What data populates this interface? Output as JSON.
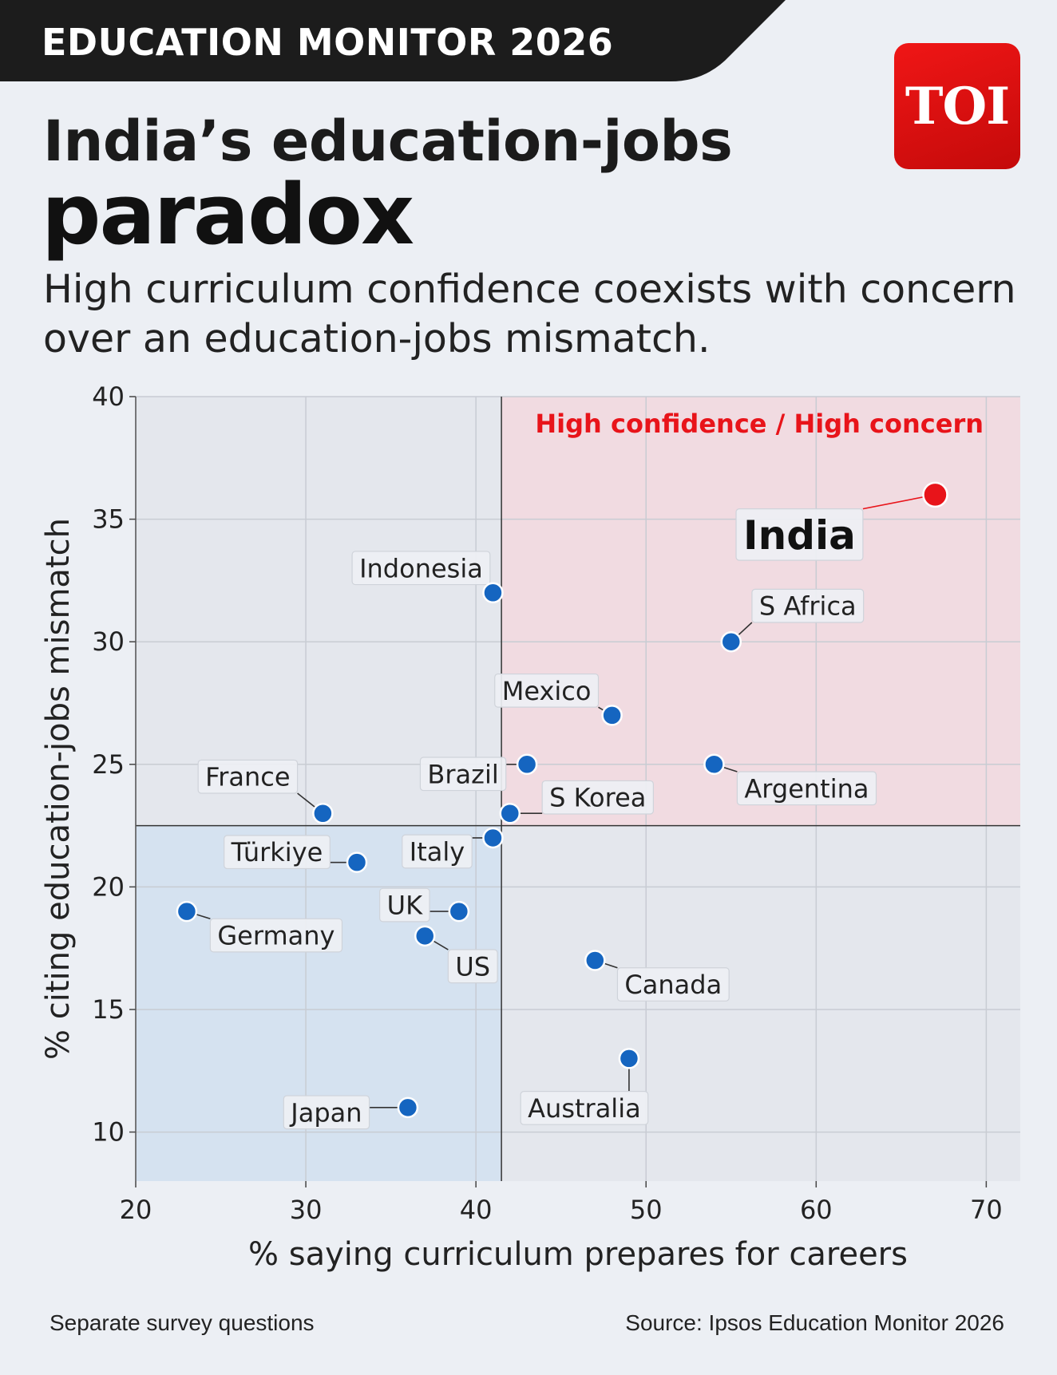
{
  "banner": {
    "label": "EDUCATION MONITOR 2026"
  },
  "logo": {
    "text": "TOI",
    "color": "#e8141a"
  },
  "headline": {
    "line1": "India’s education-jobs",
    "line2": "paradox"
  },
  "subtitle": "High curriculum confidence coexists with concern over an education-jobs mismatch.",
  "footer": {
    "note": "Separate survey questions",
    "source": "Source: Ipsos Education Monitor 2026"
  },
  "colors": {
    "point": "#1565c0",
    "highlight": "#e8141a",
    "quad_high": "#f1dbe1",
    "quad_low": "#d5e2f0",
    "quad_neutral": "#e4e7ed"
  },
  "chart_data": {
    "type": "scatter",
    "title": "",
    "xlabel": "% saying curriculum prepares for careers",
    "ylabel": "% citing education-jobs mismatch",
    "xlim": [
      20,
      72
    ],
    "ylim": [
      8,
      40
    ],
    "xticks": [
      20,
      30,
      40,
      50,
      60,
      70
    ],
    "yticks": [
      10,
      15,
      20,
      25,
      30,
      35,
      40
    ],
    "grid": true,
    "reference_lines": {
      "x": 41.5,
      "y": 22.5
    },
    "quadrant_label": "High confidence / High concern",
    "points": [
      {
        "label": "India",
        "x": 67,
        "y": 36,
        "highlight": true
      },
      {
        "label": "Indonesia",
        "x": 41,
        "y": 32
      },
      {
        "label": "S Africa",
        "x": 55,
        "y": 30
      },
      {
        "label": "Mexico",
        "x": 48,
        "y": 27
      },
      {
        "label": "Brazil",
        "x": 43,
        "y": 25
      },
      {
        "label": "Argentina",
        "x": 54,
        "y": 25
      },
      {
        "label": "France",
        "x": 31,
        "y": 23
      },
      {
        "label": "S Korea",
        "x": 42,
        "y": 23
      },
      {
        "label": "Italy",
        "x": 41,
        "y": 22
      },
      {
        "label": "Türkiye",
        "x": 33,
        "y": 21
      },
      {
        "label": "Germany",
        "x": 23,
        "y": 19
      },
      {
        "label": "UK",
        "x": 39,
        "y": 19
      },
      {
        "label": "US",
        "x": 37,
        "y": 18
      },
      {
        "label": "Canada",
        "x": 47,
        "y": 17
      },
      {
        "label": "Australia",
        "x": 49,
        "y": 13
      },
      {
        "label": "Japan",
        "x": 36,
        "y": 11
      }
    ]
  }
}
